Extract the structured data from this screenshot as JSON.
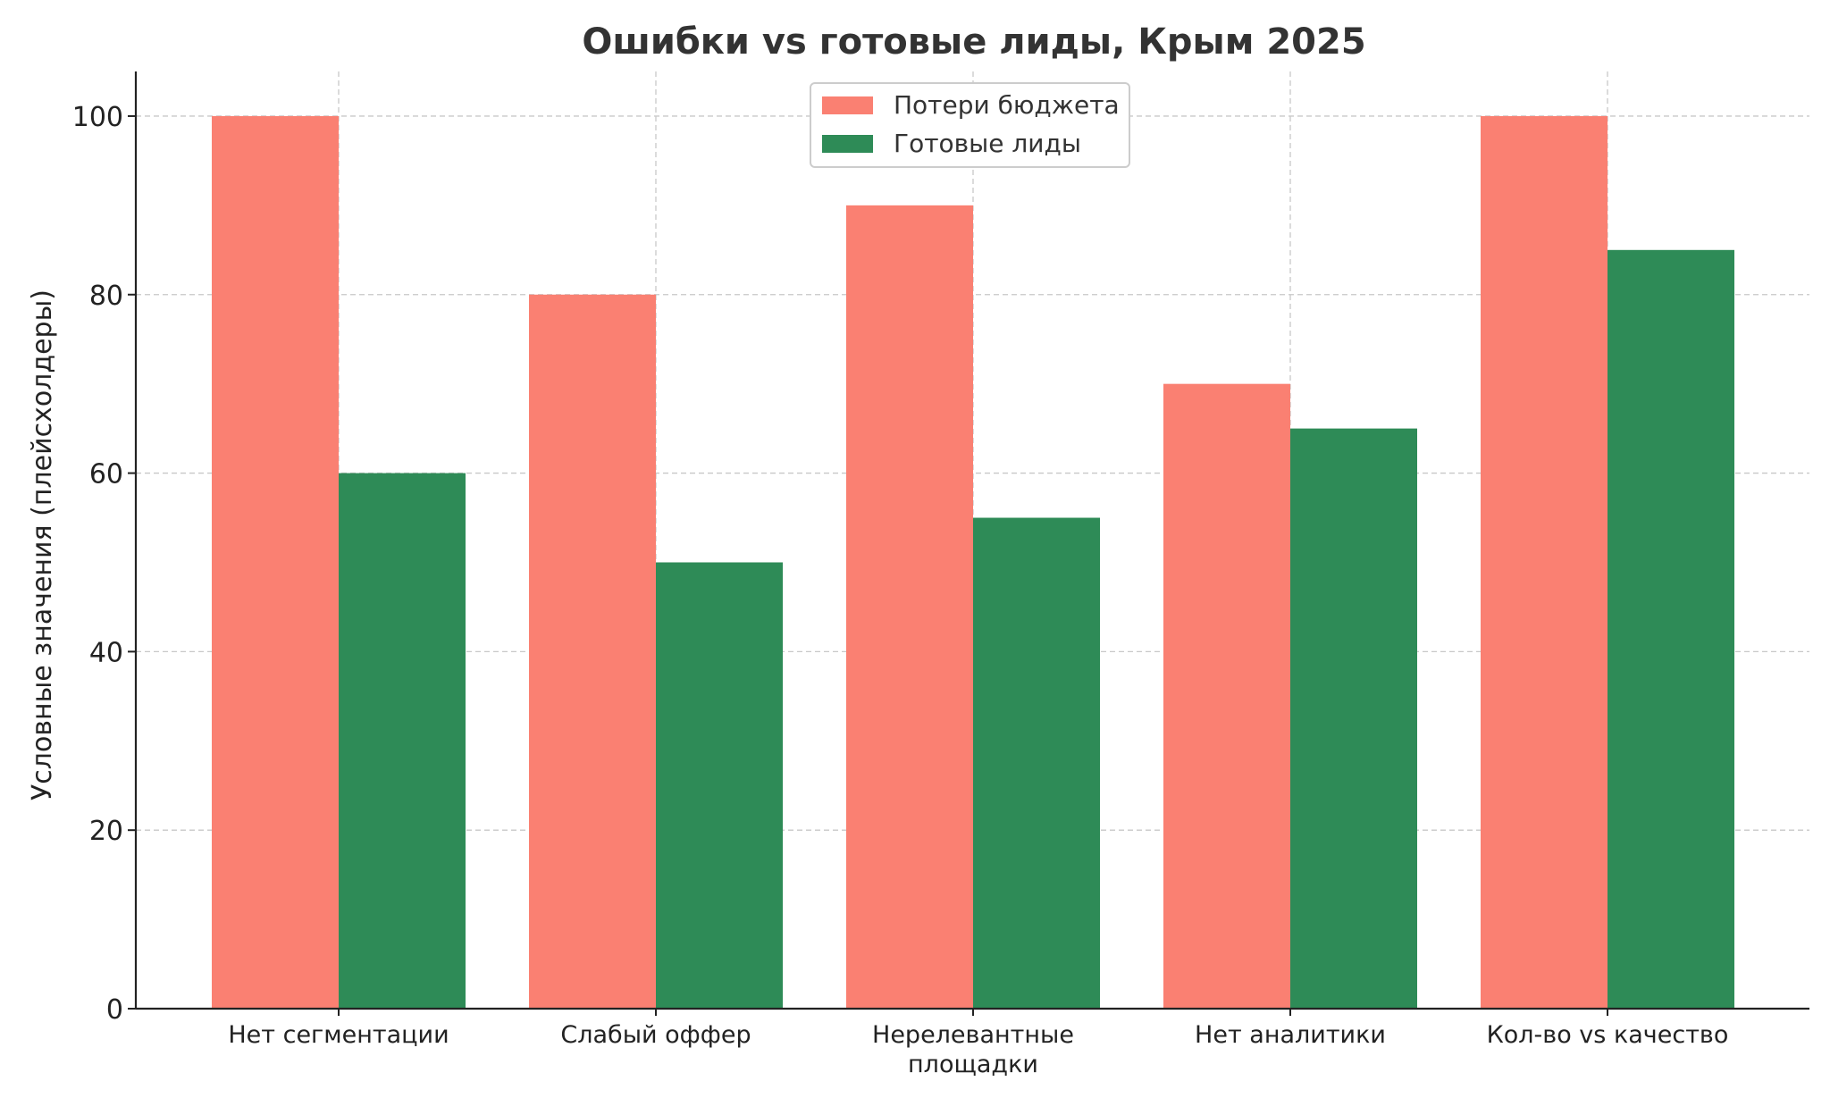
{
  "chart_data": {
    "type": "bar",
    "title": "Ошибки vs готовые лиды, Крым 2025",
    "xlabel": "",
    "ylabel": "Условные значения (плейсхолдеры)",
    "ylim": [
      0,
      105
    ],
    "yticks": [
      0,
      20,
      40,
      60,
      80,
      100
    ],
    "grid": true,
    "legend_position": "top-center",
    "categories": [
      [
        "Нет сегментации"
      ],
      [
        "Слабый оффер"
      ],
      [
        "Нерелевантные",
        "площадки"
      ],
      [
        "Нет аналитики"
      ],
      [
        "Кол-во vs качество"
      ]
    ],
    "series": [
      {
        "name": "Потери бюджета",
        "color": "#fa8072",
        "values": [
          100,
          80,
          90,
          70,
          100
        ]
      },
      {
        "name": "Готовые лиды",
        "color": "#2e8b57",
        "values": [
          60,
          50,
          55,
          65,
          85
        ]
      }
    ]
  }
}
